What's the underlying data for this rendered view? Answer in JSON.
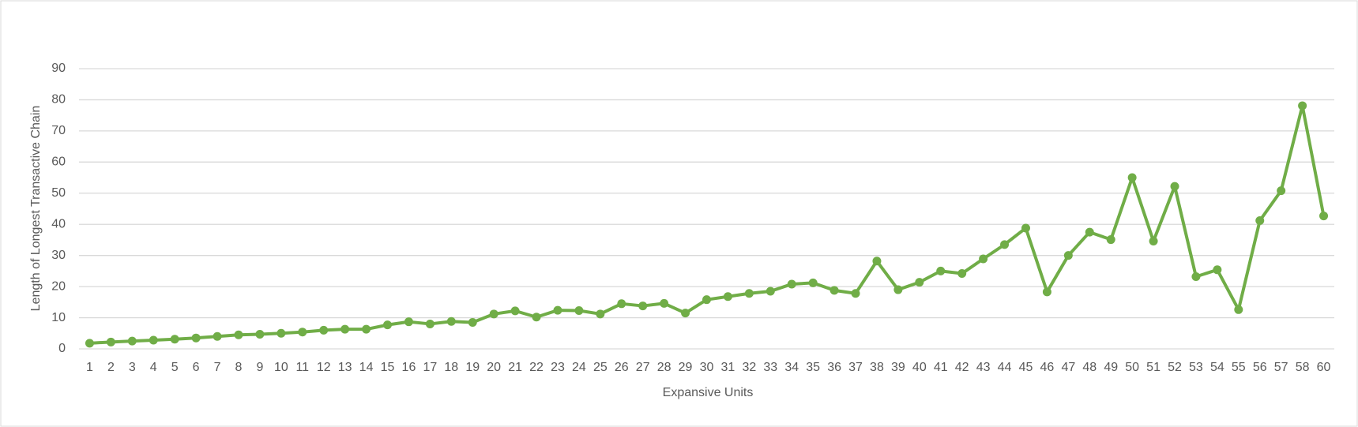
{
  "chart_data": {
    "type": "line",
    "x_label": "Expansive Units",
    "y_label": "Length of Longest Transactive Chain",
    "categories": [
      "1",
      "2",
      "3",
      "4",
      "5",
      "6",
      "7",
      "8",
      "9",
      "10",
      "11",
      "12",
      "13",
      "14",
      "15",
      "16",
      "17",
      "18",
      "19",
      "20",
      "21",
      "22",
      "23",
      "24",
      "25",
      "26",
      "27",
      "28",
      "29",
      "30",
      "31",
      "32",
      "33",
      "34",
      "35",
      "36",
      "37",
      "38",
      "39",
      "40",
      "41",
      "42",
      "43",
      "44",
      "45",
      "46",
      "47",
      "48",
      "49",
      "50",
      "51",
      "52",
      "53",
      "54",
      "55",
      "56",
      "57",
      "58",
      "60"
    ],
    "series": [
      {
        "color": "#70ad47",
        "values": [
          1.8,
          2.2,
          2.5,
          2.8,
          3.1,
          3.5,
          4,
          4.5,
          4.7,
          5,
          5.4,
          6,
          6.3,
          6.3,
          7.7,
          8.7,
          8,
          8.8,
          8.5,
          11.2,
          12.2,
          10.2,
          12.4,
          12.3,
          11.2,
          14.5,
          13.8,
          14.6,
          11.5,
          15.8,
          16.8,
          17.8,
          18.5,
          20.8,
          21.2,
          18.8,
          17.8,
          28.2,
          19,
          21.4,
          25,
          24.2,
          28.9,
          33.5,
          38.8,
          18.3,
          30,
          37.5,
          35.1,
          55,
          34.6,
          52.2,
          23.2,
          25.4,
          12.6,
          41.2,
          50.8,
          78.1,
          42.7
        ]
      }
    ],
    "ylim": [
      0,
      90
    ],
    "yticks": [
      0,
      10,
      20,
      30,
      40,
      50,
      60,
      70,
      80,
      90
    ],
    "grid": true
  }
}
